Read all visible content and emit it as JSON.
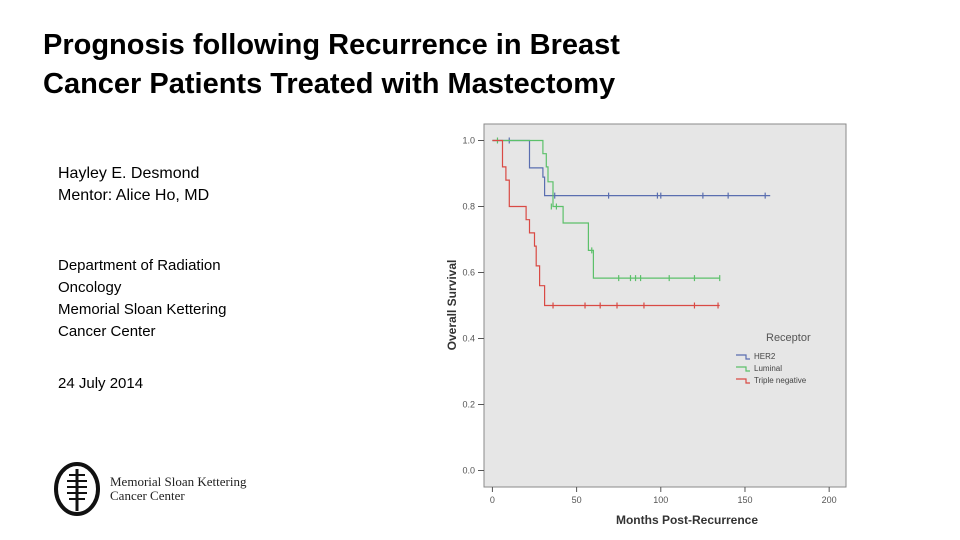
{
  "slide": {
    "title_line1": "Prognosis following Recurrence in Breast",
    "title_line2": "Cancer Patients Treated with Mastectomy",
    "author": "Hayley E. Desmond",
    "mentor": "Mentor: Alice Ho, MD",
    "dept_lines": [
      "Department of Radiation",
      "Oncology",
      "Memorial Sloan Kettering",
      "Cancer Center"
    ],
    "date": "24 July 2014",
    "logo_line1": "Memorial Sloan Kettering",
    "logo_line2": "Cancer Center"
  },
  "colors": {
    "her2": "#5a6eb0",
    "luminal": "#5cc06a",
    "triple": "#d94a44",
    "plot_bg": "#e6e6e6",
    "frame": "#8a8a8a"
  },
  "chart_data": {
    "type": "line",
    "subtype": "kaplan-meier step",
    "title": "",
    "xlabel": "Months Post-Recurrence",
    "ylabel": "Overall Survival",
    "xlim": [
      -5,
      210
    ],
    "ylim": [
      -0.05,
      1.05
    ],
    "x_ticks": [
      0,
      50,
      100,
      150,
      200
    ],
    "y_ticks": [
      0.0,
      0.2,
      0.4,
      0.6,
      0.8,
      1.0
    ],
    "y_tick_labels": [
      "0.0",
      "0.2",
      "0.4",
      "0.6",
      "0.8",
      "1.0"
    ],
    "legend_title": "Receptor",
    "legend_position": "right",
    "series": [
      {
        "name": "HER2",
        "steps": [
          [
            0,
            1.0
          ],
          [
            22,
            1.0
          ],
          [
            22,
            0.917
          ],
          [
            30,
            0.917
          ],
          [
            30,
            0.889
          ],
          [
            31,
            0.889
          ],
          [
            31,
            0.833
          ],
          [
            165,
            0.833
          ]
        ],
        "censored": [
          [
            10,
            1.0
          ],
          [
            37,
            0.833
          ],
          [
            69,
            0.833
          ],
          [
            98,
            0.833
          ],
          [
            100,
            0.833
          ],
          [
            125,
            0.833
          ],
          [
            140,
            0.833
          ],
          [
            162,
            0.833
          ]
        ]
      },
      {
        "name": "Luminal",
        "steps": [
          [
            0,
            1.0
          ],
          [
            30,
            1.0
          ],
          [
            30,
            0.96
          ],
          [
            32,
            0.96
          ],
          [
            32,
            0.92
          ],
          [
            33,
            0.92
          ],
          [
            33,
            0.875
          ],
          [
            36,
            0.875
          ],
          [
            36,
            0.8
          ],
          [
            42,
            0.8
          ],
          [
            42,
            0.75
          ],
          [
            57,
            0.75
          ],
          [
            57,
            0.667
          ],
          [
            60,
            0.667
          ],
          [
            60,
            0.583
          ],
          [
            135,
            0.583
          ]
        ],
        "censored": [
          [
            3,
            1.0
          ],
          [
            35,
            0.8
          ],
          [
            38,
            0.8
          ],
          [
            59,
            0.667
          ],
          [
            75,
            0.583
          ],
          [
            82,
            0.583
          ],
          [
            85,
            0.583
          ],
          [
            88,
            0.583
          ],
          [
            105,
            0.583
          ],
          [
            120,
            0.583
          ],
          [
            135,
            0.583
          ]
        ]
      },
      {
        "name": "Triple negative",
        "steps": [
          [
            0,
            1.0
          ],
          [
            6,
            1.0
          ],
          [
            6,
            0.92
          ],
          [
            8,
            0.92
          ],
          [
            8,
            0.88
          ],
          [
            10,
            0.88
          ],
          [
            10,
            0.8
          ],
          [
            20,
            0.8
          ],
          [
            20,
            0.76
          ],
          [
            22,
            0.76
          ],
          [
            22,
            0.72
          ],
          [
            25,
            0.72
          ],
          [
            25,
            0.68
          ],
          [
            26,
            0.68
          ],
          [
            26,
            0.62
          ],
          [
            28,
            0.62
          ],
          [
            28,
            0.56
          ],
          [
            31,
            0.56
          ],
          [
            31,
            0.5
          ],
          [
            135,
            0.5
          ]
        ],
        "censored": [
          [
            36,
            0.5
          ],
          [
            55,
            0.5
          ],
          [
            64,
            0.5
          ],
          [
            74,
            0.5
          ],
          [
            90,
            0.5
          ],
          [
            120,
            0.5
          ],
          [
            134,
            0.5
          ]
        ]
      }
    ]
  }
}
